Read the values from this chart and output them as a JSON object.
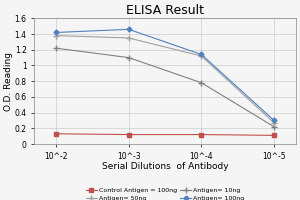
{
  "title": "ELISA Result",
  "xlabel": "Serial Dilutions  of Antibody",
  "ylabel": "O.D. Reading",
  "x_positions": [
    0,
    1,
    2,
    3
  ],
  "x_labels": [
    "10^-2",
    "10^-3",
    "10^-4",
    "10^-5"
  ],
  "series": [
    {
      "label": "Control Antigen = 100ng",
      "color": "#c0504d",
      "marker": "s",
      "markersize": 2.5,
      "linewidth": 0.8,
      "linestyle": "-",
      "values": [
        0.13,
        0.12,
        0.12,
        0.11
      ]
    },
    {
      "label": "Antigen= 10ng",
      "color": "#808080",
      "marker": "+",
      "markersize": 4,
      "linewidth": 0.8,
      "linestyle": "-",
      "values": [
        1.22,
        1.1,
        0.78,
        0.22
      ]
    },
    {
      "label": "Antigen= 50ng",
      "color": "#a0a0a0",
      "marker": "+",
      "markersize": 4,
      "linewidth": 0.8,
      "linestyle": "-",
      "values": [
        1.38,
        1.35,
        1.12,
        0.27
      ]
    },
    {
      "label": "Antigen= 100ng",
      "color": "#4f81bd",
      "marker": "D",
      "markersize": 2.5,
      "linewidth": 0.8,
      "linestyle": "-",
      "values": [
        1.42,
        1.46,
        1.14,
        0.3
      ]
    }
  ],
  "ylim": [
    0,
    1.6
  ],
  "yticks": [
    0,
    0.2,
    0.4,
    0.6,
    0.8,
    1.0,
    1.2,
    1.4,
    1.6
  ],
  "background_color": "#f5f5f5",
  "title_fontsize": 9,
  "label_fontsize": 6.5,
  "tick_fontsize": 5.5,
  "legend_fontsize": 4.5
}
